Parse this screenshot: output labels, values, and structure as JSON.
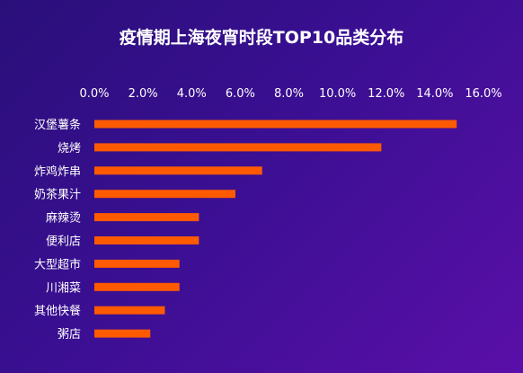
{
  "chart_data": {
    "type": "bar",
    "orientation": "horizontal",
    "title": "疫情期上海夜宵时段TOP10品类分布",
    "categories": [
      "汉堡薯条",
      "烧烤",
      "炸鸡炸串",
      "奶茶果汁",
      "麻辣烫",
      "便利店",
      "大型超市",
      "川湘菜",
      "其他快餐",
      "粥店"
    ],
    "values": [
      14.9,
      11.8,
      6.9,
      5.8,
      4.3,
      4.3,
      3.5,
      3.5,
      2.9,
      2.3
    ],
    "value_unit": "%",
    "xlim": [
      0,
      16
    ],
    "xticks": [
      "0.0%",
      "2.0%",
      "4.0%",
      "6.0%",
      "8.0%",
      "10.0%",
      "12.0%",
      "14.0%",
      "16.0%"
    ],
    "axis_position": "top",
    "grid": false,
    "bar_color": "#ff5a00"
  }
}
